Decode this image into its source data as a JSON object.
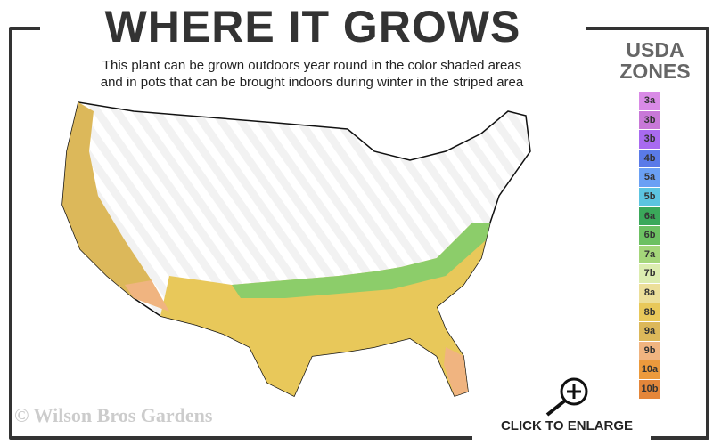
{
  "title": "WHERE IT GROWS",
  "subtitle_line1": "This plant can be grown outdoors year round in the color shaded areas",
  "subtitle_line2": "and in pots that can be brought indoors during winter in the striped area",
  "legend": {
    "title_line1": "USDA",
    "title_line2": "ZONES",
    "zones": [
      {
        "label": "3a",
        "color": "#d98ae6"
      },
      {
        "label": "3b",
        "color": "#c878d8"
      },
      {
        "label": "3b",
        "color": "#a86af0"
      },
      {
        "label": "4b",
        "color": "#5a7ae8"
      },
      {
        "label": "5a",
        "color": "#6aa0f4"
      },
      {
        "label": "5b",
        "color": "#5cc4e0"
      },
      {
        "label": "6a",
        "color": "#3aa85a"
      },
      {
        "label": "6b",
        "color": "#6cc062"
      },
      {
        "label": "7a",
        "color": "#a4d67a"
      },
      {
        "label": "7b",
        "color": "#dcedb0"
      },
      {
        "label": "8a",
        "color": "#ecdf9a"
      },
      {
        "label": "8b",
        "color": "#e8c85a"
      },
      {
        "label": "9a",
        "color": "#dcb85a"
      },
      {
        "label": "9b",
        "color": "#f0b480"
      },
      {
        "label": "10a",
        "color": "#ec9a3c"
      },
      {
        "label": "10b",
        "color": "#e4863a"
      }
    ]
  },
  "copyright": "© Wilson Bros Gardens",
  "enlarge_label": "CLICK TO ENLARGE",
  "icons": {
    "enlarge": "zoom-in-magnifier-icon"
  }
}
